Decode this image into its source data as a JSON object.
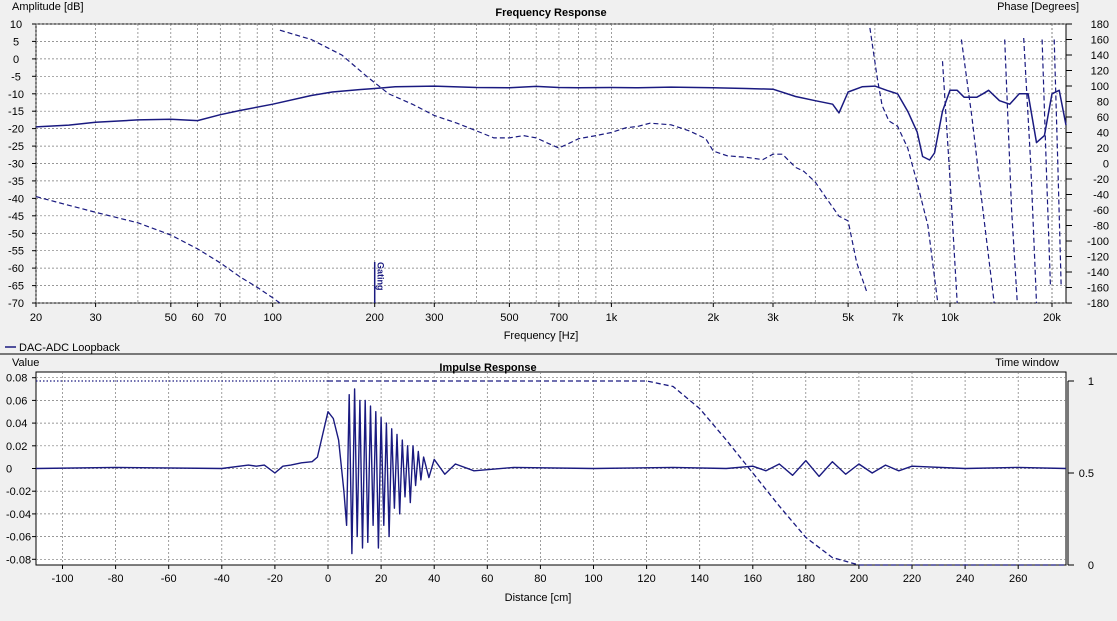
{
  "chart_data": [
    {
      "type": "line",
      "title": "Frequency Response",
      "xlabel": "Frequency [Hz]",
      "ylabel": "Amplitude [dB]",
      "y2label": "Phase [Degrees]",
      "x_scale": "log",
      "xlim": [
        20,
        22000
      ],
      "ylim": [
        -70,
        10
      ],
      "y2lim": [
        -180,
        180
      ],
      "grid": true,
      "x_ticks": [
        20,
        30,
        50,
        60,
        70,
        100,
        200,
        300,
        500,
        700,
        1000,
        2000,
        3000,
        5000,
        7000,
        10000,
        20000
      ],
      "x_tick_labels": [
        "20",
        "30",
        "50",
        "60",
        "70",
        "100",
        "200",
        "300",
        "500",
        "700",
        "1k",
        "2k",
        "3k",
        "5k",
        "7k",
        "10k",
        "20k"
      ],
      "y_ticks": [
        10,
        5,
        0,
        -5,
        -10,
        -15,
        -20,
        -25,
        -30,
        -35,
        -40,
        -45,
        -50,
        -55,
        -60,
        -65,
        -70
      ],
      "y2_ticks": [
        180,
        160,
        140,
        120,
        100,
        80,
        60,
        40,
        20,
        0,
        -20,
        -40,
        -60,
        -80,
        -100,
        -120,
        -140,
        -160,
        -180
      ],
      "marker": {
        "x": 200,
        "label": "Gating"
      },
      "legend": {
        "placement": "bottom-left",
        "entries": [
          "DAC-ADC Loopback"
        ]
      },
      "series": [
        {
          "name": "DAC-ADC Loopback",
          "style": "solid",
          "axis": "left",
          "color": "#1a1a80",
          "x": [
            20,
            25,
            30,
            40,
            50,
            60,
            70,
            80,
            100,
            130,
            150,
            180,
            200,
            230,
            300,
            400,
            500,
            600,
            700,
            800,
            1000,
            1200,
            1500,
            2000,
            2500,
            3000,
            3500,
            4000,
            4500,
            4700,
            5000,
            5500,
            6000,
            6500,
            7000,
            7500,
            8000,
            8300,
            8700,
            9000,
            9500,
            10000,
            10500,
            11000,
            11500,
            12000,
            12500,
            13000,
            14000,
            15000,
            16000,
            17000,
            18000,
            19000,
            20000,
            21000,
            22000
          ],
          "y": [
            -19.5,
            -19,
            -18.2,
            -17.5,
            -17.3,
            -17.7,
            -16,
            -14.8,
            -13,
            -10.5,
            -9.5,
            -8.8,
            -8.5,
            -8,
            -7.8,
            -8.2,
            -8.3,
            -7.9,
            -8.2,
            -8.3,
            -8.2,
            -8.3,
            -8.1,
            -8.3,
            -8.5,
            -8.7,
            -10.8,
            -12,
            -13,
            -15.5,
            -9.5,
            -8,
            -7.8,
            -9,
            -10,
            -15,
            -21,
            -28,
            -29,
            -27,
            -15,
            -9,
            -9,
            -11,
            -11,
            -11,
            -10,
            -9,
            -12,
            -13,
            -10,
            -10,
            -24,
            -22,
            -10,
            -9,
            -19
          ]
        },
        {
          "name": "",
          "style": "dashed",
          "axis": "right",
          "color": "#1a1a80",
          "x": [
            105,
            130,
            160,
            190,
            220,
            260,
            300,
            350,
            400,
            450,
            500,
            550,
            600,
            650,
            700,
            750,
            800,
            900,
            1000,
            1100,
            1200,
            1300,
            1500,
            1700,
            1900,
            2000,
            2200,
            2500,
            2800,
            3000,
            3200,
            3500,
            3700,
            4000,
            4300,
            4700,
            5000,
            5300,
            5700
          ],
          "y": [
            172,
            160,
            140,
            112,
            90,
            76,
            62,
            52,
            42,
            33,
            33,
            36,
            33,
            26,
            20,
            26,
            32,
            36,
            40,
            46,
            48,
            52,
            50,
            42,
            32,
            16,
            10,
            8,
            5,
            12,
            12,
            -5,
            -10,
            -24,
            -44,
            -68,
            -74,
            -128,
            -168
          ]
        },
        {
          "name": "",
          "style": "dashed",
          "axis": "left",
          "color": "#1a1a80",
          "x": [
            20,
            25,
            30,
            40,
            50,
            60,
            70,
            80,
            90,
            100,
            105
          ],
          "y": [
            -39.5,
            -42,
            -44,
            -47,
            -50.5,
            -54.5,
            -58.5,
            -62.5,
            -65.5,
            -68.5,
            -70
          ]
        },
        {
          "name": "",
          "style": "dashed",
          "axis": "right",
          "color": "#1a1a80",
          "x": [
            5800,
            6100,
            6300,
            6600,
            7000,
            7500,
            8000,
            8600,
            9200
          ],
          "y": [
            175,
            110,
            75,
            55,
            48,
            20,
            -25,
            -80,
            -180
          ]
        },
        {
          "name": "",
          "style": "dashed",
          "axis": "right",
          "color": "#1a1a80",
          "x": [
            9500,
            10000,
            10500
          ],
          "y": [
            132,
            -20,
            -180
          ]
        },
        {
          "name": "",
          "style": "dashed",
          "axis": "right",
          "color": "#1a1a80",
          "x": [
            10800,
            11600,
            12500,
            13500
          ],
          "y": [
            160,
            60,
            -60,
            -180
          ]
        },
        {
          "name": "",
          "style": "dashed",
          "axis": "right",
          "color": "#1a1a80",
          "x": [
            14500,
            15200,
            15800
          ],
          "y": [
            160,
            -60,
            -180
          ]
        },
        {
          "name": "",
          "style": "dashed",
          "axis": "right",
          "color": "#1a1a80",
          "x": [
            16500,
            17300,
            18000
          ],
          "y": [
            162,
            0,
            -180
          ]
        },
        {
          "name": "",
          "style": "dashed",
          "axis": "right",
          "color": "#1a1a80",
          "x": [
            18700,
            19300,
            19800
          ],
          "y": [
            160,
            -20,
            -160
          ]
        },
        {
          "name": "",
          "style": "dashed",
          "axis": "right",
          "color": "#1a1a80",
          "x": [
            20300,
            20800,
            21300
          ],
          "y": [
            160,
            0,
            -160
          ]
        }
      ]
    },
    {
      "type": "line",
      "title": "Impulse Response",
      "xlabel": "Distance [cm]",
      "ylabel": "Value",
      "y2label": "Time window",
      "xlim": [
        -110,
        278
      ],
      "ylim": [
        -0.085,
        0.085
      ],
      "y2lim": [
        0,
        1
      ],
      "grid": true,
      "x_ticks": [
        -100,
        -80,
        -60,
        -40,
        -20,
        0,
        20,
        40,
        60,
        80,
        100,
        120,
        140,
        160,
        180,
        200,
        220,
        240,
        260
      ],
      "y_ticks": [
        0.08,
        0.06,
        0.04,
        0.02,
        0,
        -0.02,
        -0.04,
        -0.06,
        -0.08
      ],
      "y_tick_labels": [
        "0.08",
        "0.06",
        "0.04",
        "0.02",
        "0",
        "-0.02",
        "-0.04",
        "-0.06",
        "-0.08"
      ],
      "y2_ticks": [
        1,
        0.5,
        0
      ],
      "series": [
        {
          "name": "",
          "style": "solid",
          "axis": "left",
          "color": "#1a1a80",
          "x": [
            -110,
            -80,
            -40,
            -30,
            -27,
            -24,
            -20,
            -17,
            -14,
            -10,
            -6,
            -4,
            -2,
            0,
            2,
            4,
            6,
            7,
            8,
            9,
            10,
            11,
            12,
            13,
            14,
            15,
            16,
            17,
            18,
            19,
            20,
            21,
            22,
            23,
            24,
            25,
            26,
            27,
            28,
            29,
            30,
            31,
            32,
            33,
            34,
            35,
            36,
            38,
            40,
            44,
            48,
            55,
            70,
            100,
            130,
            150,
            160,
            165,
            170,
            175,
            180,
            185,
            190,
            195,
            200,
            205,
            210,
            215,
            220,
            240,
            260,
            278
          ],
          "y": [
            0.0,
            0.001,
            0.0,
            0.003,
            0.002,
            0.003,
            -0.004,
            0.002,
            0.003,
            0.005,
            0.006,
            0.01,
            0.03,
            0.05,
            0.044,
            0.025,
            -0.02,
            -0.05,
            0.065,
            -0.075,
            0.07,
            -0.06,
            0.06,
            -0.07,
            0.06,
            -0.065,
            0.055,
            -0.05,
            0.05,
            -0.07,
            0.045,
            -0.05,
            0.04,
            -0.06,
            0.035,
            -0.035,
            0.03,
            -0.04,
            0.025,
            -0.025,
            0.02,
            -0.03,
            0.02,
            -0.015,
            0.015,
            -0.01,
            0.01,
            -0.008,
            0.008,
            -0.005,
            0.004,
            -0.002,
            0.001,
            0.0,
            0.001,
            0.0,
            0.002,
            -0.002,
            0.004,
            -0.006,
            0.007,
            -0.007,
            0.006,
            -0.005,
            0.004,
            -0.004,
            0.003,
            -0.002,
            0.002,
            0.0,
            0.001,
            0.0
          ]
        },
        {
          "name": "",
          "style": "dashed",
          "axis": "right",
          "color": "#1a1a80",
          "x": [
            0,
            120,
            130,
            140,
            150,
            160,
            170,
            180,
            190,
            200
          ],
          "y": [
            1,
            1,
            0.97,
            0.85,
            0.68,
            0.5,
            0.32,
            0.15,
            0.04,
            0
          ]
        },
        {
          "name": "",
          "style": "dashed",
          "axis": "right",
          "color": "#1a1a80",
          "x": [
            200,
            278
          ],
          "y": [
            0,
            0
          ]
        },
        {
          "name": "",
          "style": "dotted",
          "axis": "right",
          "color": "#1a1a80",
          "x": [
            -110,
            0
          ],
          "y": [
            1,
            1
          ]
        }
      ]
    }
  ]
}
